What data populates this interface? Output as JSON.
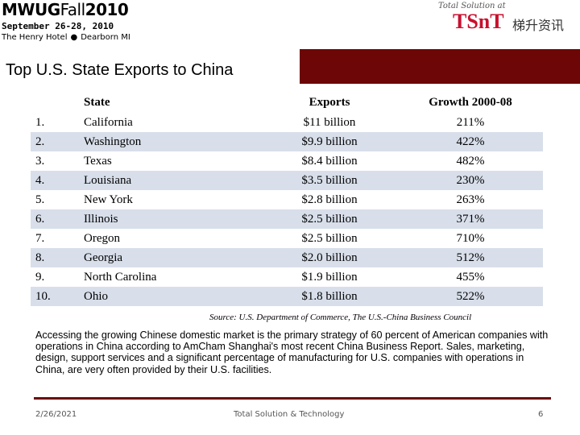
{
  "header": {
    "logo_left": {
      "mwug": "MWUG",
      "fall": "Fall",
      "year": "2010",
      "dates": "September 26-28, 2010",
      "venue": "The Henry Hotel",
      "city": "Dearborn  MI"
    },
    "logo_right": {
      "tagline": "Total Solution at",
      "brand": "TSnT",
      "chinese": "梯升资讯"
    }
  },
  "slide": {
    "title": "Top U.S. State Exports to China",
    "table": {
      "headers": {
        "rank": "",
        "state": "State",
        "exports": "Exports",
        "growth": "Growth 2000-08"
      },
      "rows": [
        {
          "rank": "1.",
          "state": "California",
          "exports": "$11 billion",
          "growth": "211%"
        },
        {
          "rank": "2.",
          "state": "Washington",
          "exports": "$9.9 billion",
          "growth": "422%"
        },
        {
          "rank": "3.",
          "state": "Texas",
          "exports": "$8.4 billion",
          "growth": "482%"
        },
        {
          "rank": "4.",
          "state": "Louisiana",
          "exports": "$3.5 billion",
          "growth": "230%"
        },
        {
          "rank": "5.",
          "state": "New York",
          "exports": "$2.8 billion",
          "growth": "263%"
        },
        {
          "rank": "6.",
          "state": "Illinois",
          "exports": "$2.5 billion",
          "growth": "371%"
        },
        {
          "rank": "7.",
          "state": "Oregon",
          "exports": "$2.5 billion",
          "growth": "710%"
        },
        {
          "rank": "8.",
          "state": "Georgia",
          "exports": "$2.0 billion",
          "growth": "512%"
        },
        {
          "rank": "9.",
          "state": "North Carolina",
          "exports": "$1.9 billion",
          "growth": "455%"
        },
        {
          "rank": "10.",
          "state": "Ohio",
          "exports": "$1.8 billion",
          "growth": "522%"
        }
      ],
      "source": "Source: U.S. Department of Commerce, The U.S.-China Business Council"
    },
    "paragraph": "Accessing the growing Chinese domestic market is the primary strategy of 60 percent of American companies with operations in China according to AmCham Shanghai's most recent China Business Report. Sales, marketing, design, support services and a significant percentage of manufacturing for U.S. companies with operations in China, are very often provided by their U.S. facilities."
  },
  "footer": {
    "date": "2/26/2021",
    "center": "Total Solution & Technology",
    "page": "6"
  },
  "colors": {
    "accent": "#6d0606",
    "brand_red": "#c8102e",
    "stripe": "#d8dfea"
  }
}
